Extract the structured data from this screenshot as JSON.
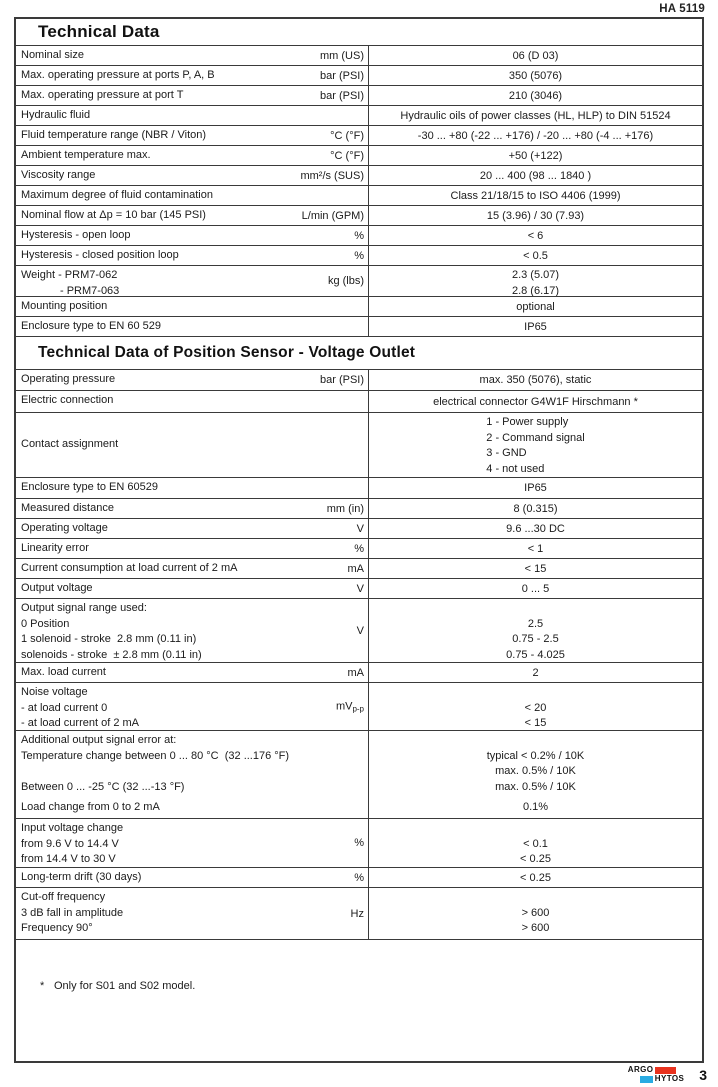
{
  "page": {
    "doc_number": "HA 5119",
    "page_number": "3",
    "footnote_marker": "*",
    "footnote": "Only for S01 and S02 model."
  },
  "logo": {
    "word1": "ARGO",
    "word2": "HYTOS",
    "red": "#e8321e",
    "blue": "#29abe2"
  },
  "sections": [
    {
      "title": "Technical Data",
      "rows": [
        {
          "label": "Nominal size",
          "unit": "mm (US)",
          "value": "06 (D 03)"
        },
        {
          "label": "Max. operating pressure at ports P, A, B",
          "unit": "bar (PSI)",
          "value": "350 (5076)"
        },
        {
          "label": "Max. operating pressure at port T",
          "unit": "bar (PSI)",
          "value": "210 (3046)"
        },
        {
          "label": "Hydraulic fluid",
          "unit": "",
          "value": "Hydraulic oils of power classes (HL, HLP) to DIN 51524"
        },
        {
          "label": "Fluid temperature range (NBR / Viton)",
          "unit": "°C (°F)",
          "value": "-30 ... +80 (-22 ... +176) / -20 ... +80 (-4 ... +176)"
        },
        {
          "label": "Ambient temperature max.",
          "unit": "°C (°F)",
          "value": "+50 (+122)"
        },
        {
          "label": "Viscosity range",
          "unit": "mm²/s (SUS)",
          "value": "20 ... 400 (98 ... 1840 )"
        },
        {
          "label": "Maximum degree of fluid contamination",
          "unit": "",
          "value": "Class 21/18/15 to ISO 4406 (1999)"
        },
        {
          "label": "Nominal flow at Δp = 10 bar (145 PSI)",
          "unit": "L/min (GPM)",
          "value": "15 (3.96) / 30 (7.93)"
        },
        {
          "label": "Hysteresis - open loop",
          "unit": "%",
          "value": "< 6"
        },
        {
          "label": "Hysteresis - closed position loop",
          "unit": "%",
          "value": "< 0.5"
        },
        {
          "label_lines": [
            "Weight - PRM7-062",
            "- PRM7-063"
          ],
          "unit": "kg (lbs)",
          "value_lines": [
            "2.3 (5.07)",
            "2.8 (6.17)"
          ]
        },
        {
          "label": "Mounting position",
          "unit": "",
          "value": "optional"
        },
        {
          "label": "Enclosure type to EN 60 529",
          "unit": "",
          "value": "IP65"
        }
      ]
    },
    {
      "title": "Technical Data of Position Sensor - Voltage Outlet",
      "rows": [
        {
          "label": "Operating pressure",
          "unit": "bar (PSI)",
          "value": "max. 350 (5076), static"
        },
        {
          "label": "Electric connection",
          "unit": "",
          "value": "electrical connector G4W1F Hirschmann *"
        },
        {
          "label": "Contact assignment",
          "unit": "",
          "value_lines": [
            "1 - Power supply",
            "2 - Command signal",
            "3 - GND",
            "4 - not used"
          ]
        },
        {
          "label": "Enclosure type to EN 60529",
          "unit": "",
          "value": "IP65"
        },
        {
          "label": "Measured distance",
          "unit": "mm (in)",
          "value": "8 (0.315)"
        },
        {
          "label": "Operating voltage",
          "unit": "V",
          "value": "9.6 ...30 DC"
        },
        {
          "label": "Linearity error",
          "unit": "%",
          "value": "< 1"
        },
        {
          "label": "Current consumption at load current of 2 mA",
          "unit": "mA",
          "value": "< 15"
        },
        {
          "label": "Output voltage",
          "unit": "V",
          "value": "0 ... 5"
        },
        {
          "label_lines": [
            "Output signal range used:",
            "0 Position",
            "1 solenoid - stroke  2.8 mm (0.11 in)",
            "solenoids - stroke  ± 2.8 mm (0.11 in)"
          ],
          "unit": "V",
          "value_lines": [
            "",
            "2.5",
            "0.75 - 2.5",
            "0.75 - 4.025"
          ]
        },
        {
          "label": "Max. load current",
          "unit": "mA",
          "value": "2"
        },
        {
          "label_lines": [
            "Noise voltage",
            "- at load current 0",
            "- at load current of 2 mA"
          ],
          "unit": "mV",
          "unit_sub": "p-p",
          "value_lines": [
            "",
            "< 20",
            "< 15"
          ]
        },
        {
          "label_lines": [
            "Additional output signal error at:",
            "Temperature change between 0 ... 80 °C  (32 ...176 °F)",
            "",
            "Between 0 ... -25 °C (32 ...-13 °F)",
            "Load change from 0 to 2 mA"
          ],
          "unit": "",
          "value_lines": [
            "",
            "typical < 0.2% / 10K",
            "max. 0.5% / 10K",
            "max. 0.5% / 10K",
            "0.1%"
          ]
        },
        {
          "label_lines": [
            "Input voltage change",
            "from 9.6 V to 14.4 V",
            "from 14.4 V to 30 V"
          ],
          "unit": "%",
          "value_lines": [
            "",
            "< 0.1",
            "< 0.25"
          ]
        },
        {
          "label": "Long-term drift (30 days)",
          "unit": "%",
          "value": "< 0.25"
        },
        {
          "label_lines": [
            "Cut-off frequency",
            "3 dB fall in amplitude",
            "Frequency 90°"
          ],
          "unit": "Hz",
          "value_lines": [
            "",
            "> 600",
            "> 600"
          ]
        }
      ]
    }
  ]
}
